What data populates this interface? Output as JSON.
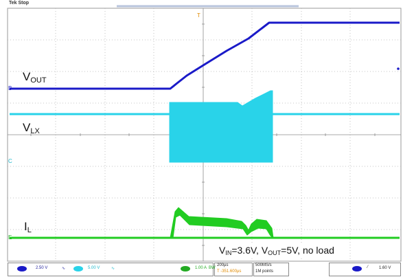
{
  "header": {
    "status": "Tek Stop",
    "trigger_marker": "T"
  },
  "signals": {
    "vout": {
      "name": "V",
      "sub": "OUT",
      "color": "#1a1ac8"
    },
    "vlx": {
      "name": "V",
      "sub": "LX",
      "color": "#29d3e9"
    },
    "il": {
      "name": "I",
      "sub": "L",
      "color": "#22cc22"
    }
  },
  "channel_markers": [
    "B",
    "C",
    "E"
  ],
  "note": {
    "vin_sym": "V",
    "vin_sub": "IN",
    "vin_val": "=3.6V, ",
    "vout_sym": "V",
    "vout_sub": "OUT",
    "vout_val": "=5V, no load"
  },
  "status_bar": {
    "ch1_scale": "2.50 V",
    "ch2_scale": "5.00 V",
    "ch4_scale": "1.00 A",
    "ch4_bw": "BW",
    "timebase": "200µs",
    "trigger_pos": "T -351.600µs",
    "sample_rate": "500MS/s",
    "record_length": "1M points",
    "trigger_level": "1.60 V"
  }
}
